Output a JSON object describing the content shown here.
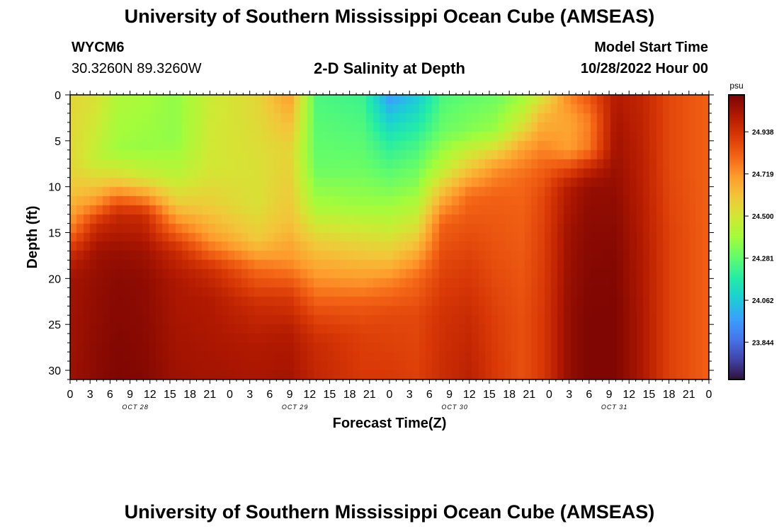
{
  "header": {
    "title": "University of Southern Mississippi Ocean Cube (AMSEAS)",
    "station": "WYCM6",
    "coords": "30.3260N  89.3260W",
    "plot_title": "2-D Salinity at Depth",
    "model_start_label": "Model Start Time",
    "model_start_value": "10/28/2022 Hour 00"
  },
  "footer": {
    "title": "University of Southern Mississippi Ocean Cube (AMSEAS)"
  },
  "chart_data": {
    "type": "heatmap",
    "title": "2-D Salinity at Depth",
    "xlabel": "Forecast Time(Z)",
    "ylabel": "Depth (ft)",
    "units": "psu",
    "x_hours": [
      0,
      96
    ],
    "ylim": [
      0,
      31
    ],
    "x_tick_labels": [
      "0",
      "3",
      "6",
      "9",
      "12",
      "15",
      "18",
      "21",
      "0",
      "3",
      "6",
      "9",
      "12",
      "15",
      "18",
      "21",
      "0",
      "3",
      "6",
      "9",
      "12",
      "15",
      "18",
      "21",
      "0",
      "3",
      "6",
      "9",
      "12",
      "15",
      "18",
      "21",
      "0"
    ],
    "day_labels": [
      "OCT 28",
      "OCT 29",
      "OCT 30",
      "OCT 31"
    ],
    "y_ticks": [
      0,
      5,
      10,
      15,
      20,
      25,
      30
    ],
    "colorbar_ticks": [
      "24.938",
      "24.719",
      "24.500",
      "24.281",
      "24.062",
      "23.844"
    ],
    "colorbar_range": [
      23.65,
      25.13
    ],
    "colors": [
      "#30123b",
      "#4145ab",
      "#4675ed",
      "#39a2fc",
      "#1bcfd4",
      "#24eca6",
      "#61fc6c",
      "#a4fc3b",
      "#d1e834",
      "#f3c63a",
      "#fe9b2d",
      "#f36315",
      "#d93806",
      "#b11901",
      "#7a0402"
    ],
    "salinity_profiles": [
      {
        "hour": 0,
        "depths": [
          0,
          8,
          11,
          14,
          16,
          18,
          20,
          31
        ],
        "values": [
          24.55,
          24.55,
          24.62,
          24.72,
          24.86,
          24.99,
          25.05,
          25.06
        ]
      },
      {
        "hour": 4,
        "depths": [
          0,
          7,
          10,
          12,
          14,
          17,
          20,
          31
        ],
        "values": [
          24.52,
          24.45,
          24.6,
          24.75,
          24.95,
          25.06,
          25.08,
          25.1
        ]
      },
      {
        "hour": 7,
        "depths": [
          0,
          6,
          9,
          11,
          13,
          17,
          20,
          31
        ],
        "values": [
          24.42,
          24.38,
          24.55,
          24.78,
          24.97,
          25.07,
          25.1,
          25.12
        ]
      },
      {
        "hour": 11,
        "depths": [
          0,
          6,
          9,
          11,
          13,
          17,
          20,
          31
        ],
        "values": [
          24.4,
          24.37,
          24.5,
          24.72,
          24.96,
          25.06,
          25.09,
          25.11
        ]
      },
      {
        "hour": 16,
        "depths": [
          0,
          5,
          9,
          12,
          14,
          17,
          20,
          31
        ],
        "values": [
          24.36,
          24.36,
          24.45,
          24.6,
          24.75,
          24.96,
          25.03,
          25.06
        ]
      },
      {
        "hour": 21,
        "depths": [
          0,
          8,
          12,
          15,
          17,
          19,
          22,
          31
        ],
        "values": [
          24.48,
          24.5,
          24.58,
          24.68,
          24.8,
          24.95,
          25.02,
          25.05
        ]
      },
      {
        "hour": 28,
        "depths": [
          0,
          8,
          12,
          16,
          19,
          23,
          27,
          31
        ],
        "values": [
          24.55,
          24.52,
          24.52,
          24.6,
          24.8,
          24.96,
          25.02,
          25.04
        ]
      },
      {
        "hour": 33,
        "depths": [
          0,
          6,
          10,
          14,
          18,
          22,
          26,
          31
        ],
        "values": [
          24.7,
          24.56,
          24.58,
          24.62,
          24.72,
          24.92,
          25.02,
          25.05
        ]
      },
      {
        "hour": 37,
        "depths": [
          0,
          8,
          12,
          16,
          20,
          24,
          27,
          31
        ],
        "values": [
          24.25,
          24.3,
          24.4,
          24.58,
          24.72,
          24.88,
          24.96,
          24.98
        ]
      },
      {
        "hour": 44,
        "depths": [
          0,
          8,
          12,
          16,
          20,
          23,
          26,
          31
        ],
        "values": [
          24.22,
          24.3,
          24.38,
          24.55,
          24.7,
          24.84,
          24.9,
          24.92
        ]
      },
      {
        "hour": 48,
        "depths": [
          0,
          5,
          10,
          14,
          18,
          21,
          24,
          31
        ],
        "values": [
          23.95,
          24.18,
          24.32,
          24.45,
          24.62,
          24.78,
          24.88,
          24.92
        ]
      },
      {
        "hour": 52,
        "depths": [
          0,
          5,
          10,
          14,
          17,
          20,
          24,
          31
        ],
        "values": [
          24.05,
          24.22,
          24.35,
          24.5,
          24.65,
          24.8,
          24.88,
          24.9
        ]
      },
      {
        "hour": 56,
        "depths": [
          0,
          4,
          8,
          11,
          14,
          18,
          24,
          31
        ],
        "values": [
          24.25,
          24.3,
          24.45,
          24.65,
          24.82,
          24.88,
          24.94,
          24.96
        ]
      },
      {
        "hour": 60,
        "depths": [
          0,
          4,
          8,
          11,
          14,
          18,
          24,
          31
        ],
        "values": [
          24.28,
          24.34,
          24.6,
          24.8,
          24.85,
          24.9,
          24.96,
          25.0
        ]
      },
      {
        "hour": 64,
        "depths": [
          0,
          4,
          8,
          11,
          14,
          18,
          24,
          31
        ],
        "values": [
          24.3,
          24.38,
          24.72,
          24.82,
          24.84,
          24.86,
          24.9,
          24.92
        ]
      },
      {
        "hour": 68,
        "depths": [
          0,
          3,
          6,
          9,
          12,
          18,
          24,
          31
        ],
        "values": [
          24.38,
          24.5,
          24.7,
          24.8,
          24.82,
          24.84,
          24.86,
          24.86
        ]
      },
      {
        "hour": 71,
        "depths": [
          0,
          2,
          5,
          8,
          11,
          16,
          24,
          31
        ],
        "values": [
          24.5,
          24.62,
          24.72,
          24.82,
          24.88,
          24.9,
          24.92,
          24.92
        ]
      },
      {
        "hour": 75,
        "depths": [
          0,
          3,
          6,
          8,
          10,
          15,
          24,
          31
        ],
        "values": [
          24.75,
          24.68,
          24.7,
          24.88,
          25.02,
          25.06,
          25.08,
          25.08
        ]
      },
      {
        "hour": 78,
        "depths": [
          0,
          3,
          6,
          8,
          10,
          15,
          24,
          31
        ],
        "values": [
          24.85,
          24.76,
          24.78,
          24.98,
          25.08,
          25.1,
          25.12,
          25.12
        ]
      },
      {
        "hour": 82,
        "depths": [
          0,
          4,
          8,
          12,
          18,
          24,
          31
        ],
        "values": [
          25.02,
          25.05,
          25.07,
          25.09,
          25.11,
          25.12,
          25.12
        ]
      },
      {
        "hour": 86,
        "depths": [
          0,
          8,
          16,
          24,
          31
        ],
        "values": [
          24.98,
          25.0,
          25.02,
          25.03,
          25.03
        ]
      },
      {
        "hour": 90,
        "depths": [
          0,
          8,
          16,
          24,
          31
        ],
        "values": [
          24.88,
          24.88,
          24.9,
          24.9,
          24.9
        ]
      },
      {
        "hour": 96,
        "depths": [
          0,
          8,
          16,
          24,
          31
        ],
        "values": [
          24.82,
          24.82,
          24.82,
          24.82,
          24.82
        ]
      }
    ]
  }
}
